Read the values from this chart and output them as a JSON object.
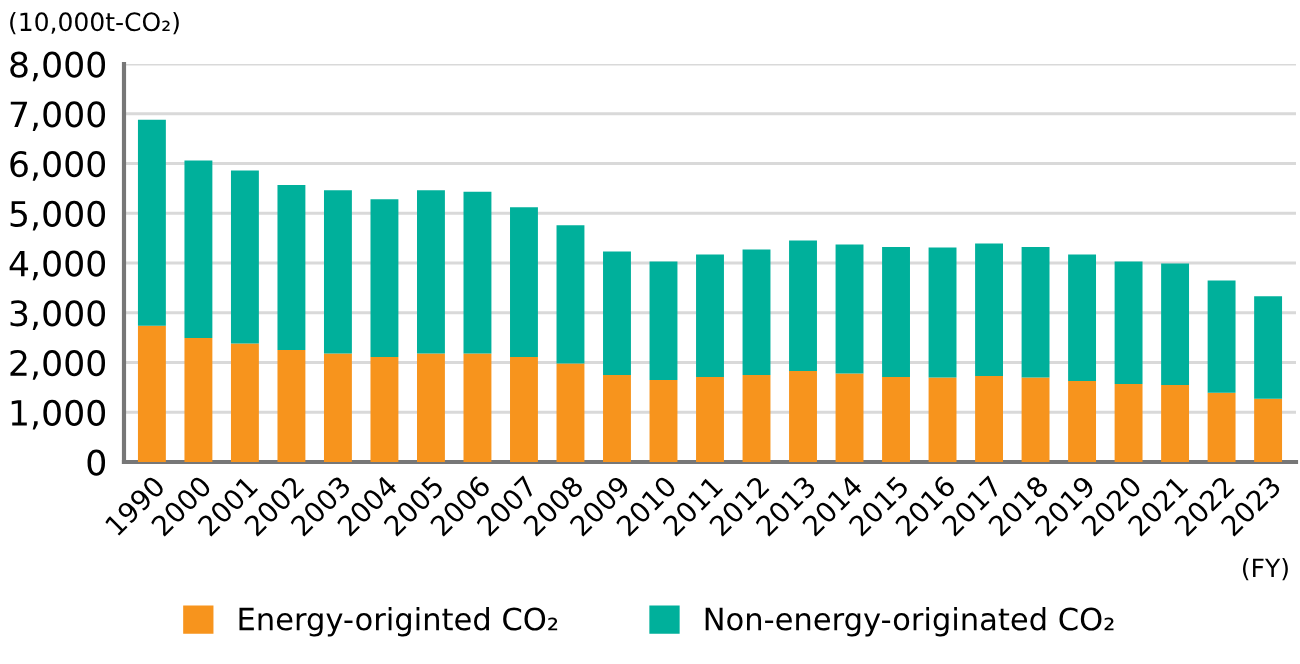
{
  "chart_data": {
    "type": "bar",
    "stacked": true,
    "ylabel": "(10,000t-CO₂)",
    "xlabel": "(FY)",
    "categories": [
      "1990",
      "2000",
      "2001",
      "2002",
      "2003",
      "2004",
      "2005",
      "2006",
      "2007",
      "2008",
      "2009",
      "2010",
      "2011",
      "2012",
      "2013",
      "2014",
      "2015",
      "2016",
      "2017",
      "2018",
      "2019",
      "2020",
      "2021",
      "2022",
      "2023"
    ],
    "series": [
      {
        "name": "Energy-originted CO₂",
        "color": "#f7941d",
        "values": [
          2740,
          2490,
          2380,
          2250,
          2180,
          2110,
          2180,
          2180,
          2110,
          1980,
          1750,
          1650,
          1710,
          1750,
          1830,
          1780,
          1710,
          1700,
          1730,
          1700,
          1630,
          1570,
          1550,
          1390,
          1270
        ]
      },
      {
        "name": "Non-energy-originated CO₂",
        "color": "#00b09b",
        "values": [
          4140,
          3570,
          3480,
          3320,
          3280,
          3170,
          3280,
          3250,
          3010,
          2780,
          2480,
          2380,
          2460,
          2520,
          2620,
          2590,
          2610,
          2610,
          2660,
          2620,
          2540,
          2460,
          2440,
          2260,
          2060
        ]
      }
    ],
    "ylim": [
      0,
      8000
    ],
    "yticks": [
      0,
      {
        "value": 1000,
        "label": "1,000"
      },
      {
        "value": 2000,
        "label": "2,000"
      },
      {
        "value": 3000,
        "label": "3,000"
      },
      {
        "value": 4000,
        "label": "4,000"
      },
      {
        "value": 5000,
        "label": "5,000"
      },
      {
        "value": 6000,
        "label": "6,000"
      },
      {
        "value": 7000,
        "label": "7,000"
      },
      {
        "value": 8000,
        "label": "8,000"
      }
    ],
    "grid": "y",
    "legend": "bottom"
  }
}
